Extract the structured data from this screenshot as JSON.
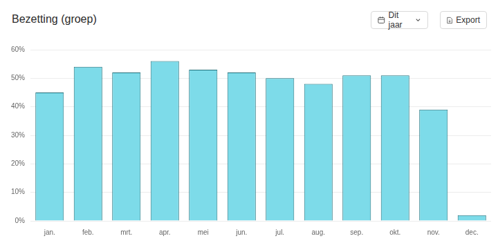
{
  "chart_data": {
    "type": "bar",
    "title": "Bezetting (groep)",
    "categories": [
      "jan.",
      "feb.",
      "mrt.",
      "apr.",
      "mei",
      "jun.",
      "jul.",
      "aug.",
      "sep.",
      "okt.",
      "nov.",
      "dec."
    ],
    "values": [
      45,
      54,
      52,
      56,
      53,
      52,
      50,
      48,
      51,
      51,
      39,
      2
    ],
    "color": "#7ddbe9",
    "ylim": [
      0,
      60
    ],
    "yticks": [
      {
        "value": 0,
        "label": "0%"
      },
      {
        "value": 10,
        "label": "10%"
      },
      {
        "value": 20,
        "label": "20%"
      },
      {
        "value": 30,
        "label": "30%"
      },
      {
        "value": 40,
        "label": "40%"
      },
      {
        "value": 50,
        "label": "50%"
      },
      {
        "value": 60,
        "label": "60%"
      }
    ],
    "grid": true
  },
  "controls": {
    "period_select": "Dit jaar",
    "export_button": "Export"
  }
}
